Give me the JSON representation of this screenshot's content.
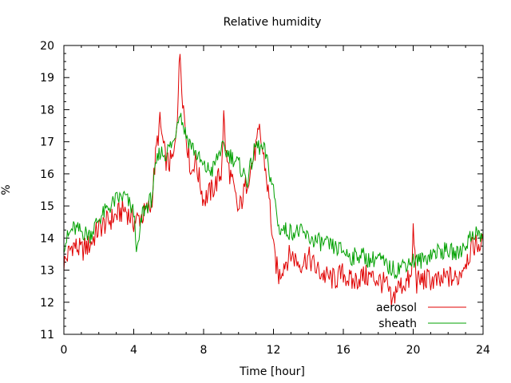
{
  "chart_data": {
    "type": "line",
    "title": "Relative humidity",
    "xlabel": "Time [hour]",
    "ylabel": "%",
    "xlim": [
      0,
      24
    ],
    "ylim": [
      11,
      20
    ],
    "xticks": [
      0,
      4,
      8,
      12,
      16,
      20,
      24
    ],
    "yticks": [
      11,
      12,
      13,
      14,
      15,
      16,
      17,
      18,
      19,
      20
    ],
    "grid": false,
    "legend_position": "bottom-right",
    "series": [
      {
        "name": "aerosol",
        "color": "#e00000",
        "x": [
          0.0,
          0.5,
          1.0,
          1.5,
          2.0,
          2.5,
          3.0,
          3.5,
          4.0,
          4.5,
          5.0,
          5.3,
          5.5,
          5.8,
          6.0,
          6.3,
          6.5,
          6.65,
          6.8,
          7.0,
          7.3,
          7.5,
          8.0,
          8.5,
          9.0,
          9.15,
          9.3,
          9.6,
          10.0,
          10.5,
          11.0,
          11.2,
          11.5,
          11.8,
          12.0,
          12.3,
          12.6,
          13.0,
          13.5,
          14.0,
          14.5,
          15.0,
          15.5,
          16.0,
          16.5,
          17.0,
          17.5,
          18.0,
          18.5,
          18.8,
          19.0,
          19.5,
          19.9,
          20.0,
          20.2,
          20.5,
          21.0,
          21.5,
          22.0,
          22.5,
          23.0,
          23.5,
          24.0
        ],
        "y": [
          13.2,
          13.8,
          13.6,
          13.8,
          14.3,
          14.5,
          14.7,
          14.9,
          14.5,
          14.7,
          15.0,
          16.8,
          17.6,
          16.5,
          16.3,
          16.5,
          18.0,
          19.8,
          18.4,
          17.2,
          16.0,
          16.5,
          15.2,
          15.5,
          16.0,
          17.8,
          16.5,
          15.8,
          14.8,
          15.8,
          16.8,
          17.3,
          16.3,
          15.0,
          13.6,
          12.8,
          13.2,
          13.5,
          13.2,
          13.4,
          13.0,
          12.8,
          12.7,
          12.9,
          12.6,
          12.8,
          12.8,
          12.7,
          12.5,
          11.9,
          12.4,
          12.6,
          12.7,
          14.3,
          12.6,
          12.7,
          12.7,
          12.6,
          12.8,
          12.7,
          13.3,
          13.8,
          13.8
        ]
      },
      {
        "name": "sheath",
        "color": "#00a000",
        "x": [
          0.0,
          0.5,
          1.0,
          1.5,
          2.0,
          2.5,
          3.0,
          3.5,
          4.0,
          4.2,
          4.5,
          5.0,
          5.3,
          5.5,
          5.8,
          6.0,
          6.3,
          6.6,
          6.8,
          7.0,
          7.5,
          8.0,
          8.5,
          9.0,
          9.5,
          10.0,
          10.5,
          11.0,
          11.5,
          12.0,
          12.3,
          13.0,
          13.5,
          14.0,
          14.5,
          15.0,
          15.5,
          16.0,
          16.5,
          17.0,
          17.5,
          18.0,
          18.5,
          19.0,
          19.5,
          20.0,
          20.5,
          21.0,
          21.5,
          22.0,
          22.5,
          23.0,
          23.5,
          24.0
        ],
        "y": [
          13.8,
          14.3,
          14.2,
          14.1,
          14.6,
          14.9,
          15.2,
          15.3,
          14.8,
          13.5,
          14.8,
          15.2,
          16.3,
          16.7,
          16.6,
          16.8,
          17.0,
          18.0,
          17.6,
          17.2,
          16.7,
          16.2,
          16.1,
          16.8,
          16.6,
          16.3,
          15.8,
          16.9,
          16.7,
          15.5,
          14.3,
          14.2,
          14.2,
          14.0,
          13.9,
          13.8,
          13.7,
          13.6,
          13.4,
          13.5,
          13.3,
          13.4,
          13.1,
          13.0,
          13.2,
          13.3,
          13.3,
          13.5,
          13.6,
          13.6,
          13.5,
          13.8,
          14.2,
          14.0
        ]
      }
    ]
  }
}
